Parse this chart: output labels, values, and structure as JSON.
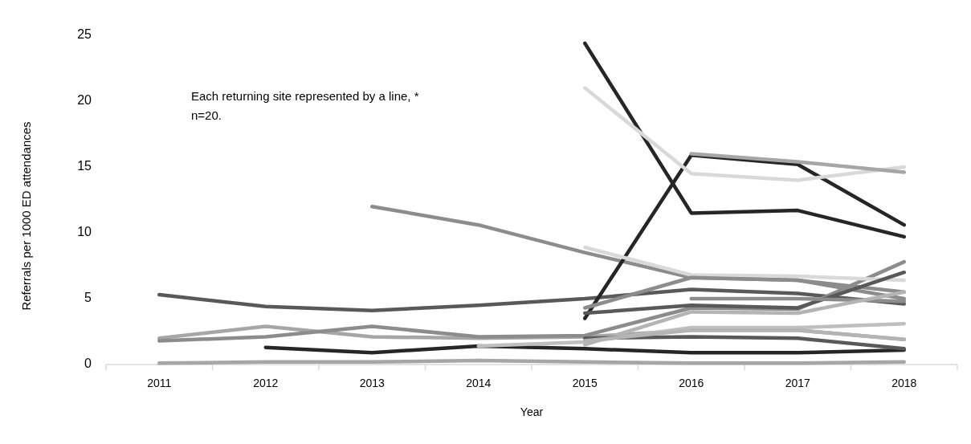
{
  "chart_data": {
    "type": "line",
    "xlabel": "Year",
    "ylabel": "Referrals per 1000 ED attendances",
    "annotations": [
      "Each returning site represented by a line, * n=20."
    ],
    "categories": [
      "2011",
      "2012",
      "2013",
      "2014",
      "2015",
      "2016",
      "2017",
      "2018"
    ],
    "ylim": [
      0,
      25
    ],
    "yticks": [
      0,
      5,
      10,
      15,
      20,
      25
    ],
    "grid": false,
    "marker": "none",
    "line_style": "solid",
    "series": [
      {
        "color": "#595959",
        "values": [
          5.3,
          4.4,
          4.1,
          4.5,
          5.0,
          5.7,
          5.4,
          4.6
        ]
      },
      {
        "color": "#a6a6a6",
        "values": [
          2.0,
          2.9,
          2.1,
          2.0,
          2.1,
          2.6,
          2.6,
          1.9
        ]
      },
      {
        "color": "#8c8c8c",
        "values": [
          1.8,
          2.1,
          2.9,
          2.1,
          2.2,
          4.3,
          4.2,
          7.8
        ]
      },
      {
        "color": "#262626",
        "values": [
          null,
          1.3,
          0.9,
          1.4,
          1.2,
          0.9,
          0.9,
          1.1
        ]
      },
      {
        "color": "#a6a6a6",
        "values": [
          0.1,
          0.2,
          0.2,
          0.3,
          0.2,
          0.1,
          0.1,
          0.2
        ]
      },
      {
        "color": "#8c8c8c",
        "values": [
          null,
          null,
          12.0,
          10.6,
          8.5,
          6.6,
          6.4,
          5.5
        ]
      },
      {
        "color": "#bfbfbf",
        "values": [
          null,
          null,
          null,
          1.4,
          1.7,
          2.8,
          2.8,
          3.1
        ]
      },
      {
        "color": "#262626",
        "values": [
          null,
          null,
          null,
          null,
          24.4,
          11.5,
          11.7,
          9.7
        ]
      },
      {
        "color": "#262626",
        "values": [
          null,
          null,
          null,
          null,
          3.5,
          15.9,
          15.2,
          10.6
        ]
      },
      {
        "color": "#d9d9d9",
        "values": [
          null,
          null,
          null,
          null,
          21.0,
          14.5,
          14.0,
          15.0
        ]
      },
      {
        "color": "#a6a6a6",
        "values": [
          null,
          null,
          null,
          null,
          null,
          16.0,
          15.4,
          14.6
        ]
      },
      {
        "color": "#d9d9d9",
        "values": [
          null,
          null,
          null,
          null,
          8.9,
          6.8,
          6.7,
          6.4
        ]
      },
      {
        "color": "#8c8c8c",
        "values": [
          null,
          null,
          null,
          null,
          4.3,
          6.6,
          6.4,
          5.0
        ]
      },
      {
        "color": "#595959",
        "values": [
          null,
          null,
          null,
          null,
          3.9,
          4.5,
          4.3,
          7.0
        ]
      },
      {
        "color": "#8c8c8c",
        "values": [
          null,
          null,
          null,
          null,
          null,
          5.0,
          5.0,
          4.8
        ]
      },
      {
        "color": "#b4b4b4",
        "values": [
          null,
          null,
          null,
          null,
          1.5,
          4.0,
          3.9,
          5.5
        ]
      },
      {
        "color": "#595959",
        "values": [
          null,
          null,
          null,
          null,
          2.0,
          2.1,
          2.0,
          1.2
        ]
      },
      {
        "color": "#b4b4b4",
        "values": [
          null,
          null,
          null,
          null,
          1.8,
          2.6,
          2.6,
          1.9
        ]
      }
    ]
  }
}
